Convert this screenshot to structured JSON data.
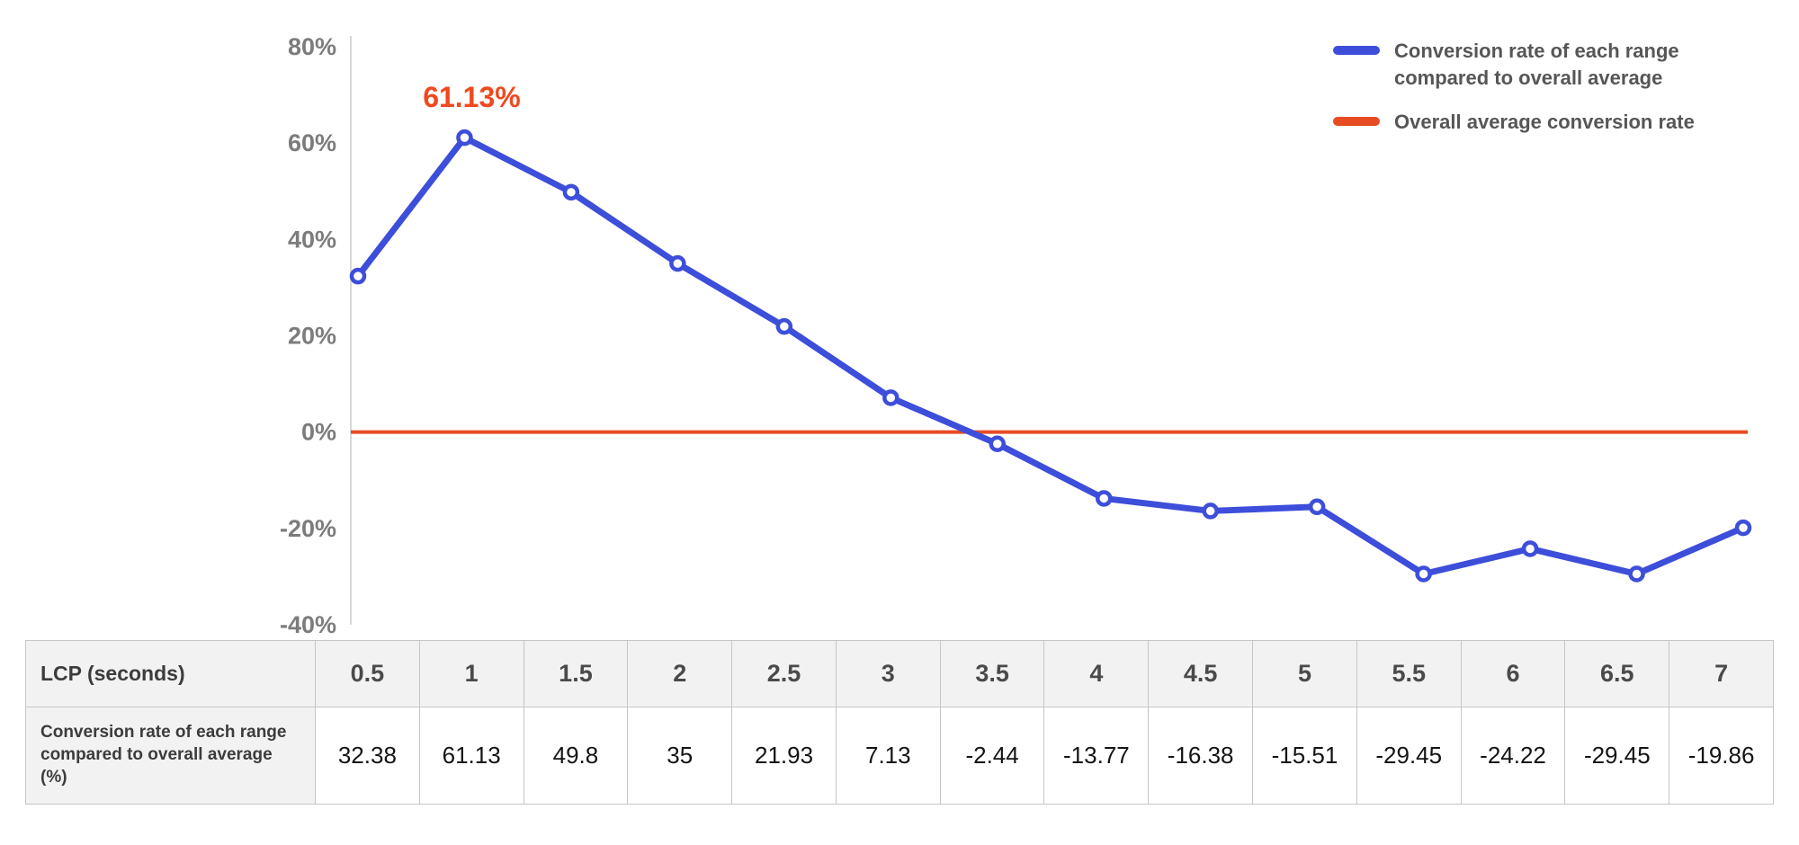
{
  "colors": {
    "series_blue": "#3d4eda",
    "average_red": "#e74b22",
    "annotation_red": "#f1481d",
    "axis_text": "#7c7c7c",
    "legend_text": "#565656",
    "axis_line": "#d8d8d8",
    "table_border": "#c6c6c6",
    "table_header_bg": "#f2f2f2"
  },
  "legend": {
    "position": "top-right",
    "items": [
      {
        "label": "Conversion rate of each range compared to overall average",
        "color": "#3d4eda"
      },
      {
        "label": "Overall average conversion rate",
        "color": "#e74b22"
      }
    ]
  },
  "annotation": {
    "text": "61.13%",
    "point_index": 1,
    "color": "#f1481d"
  },
  "chart_data": {
    "type": "line",
    "x": [
      0.5,
      1,
      1.5,
      2,
      2.5,
      3,
      3.5,
      4,
      4.5,
      5,
      5.5,
      6,
      6.5,
      7
    ],
    "series": [
      {
        "name": "Conversion rate of each range compared to overall average",
        "values": [
          32.38,
          61.13,
          49.8,
          35,
          21.93,
          7.13,
          -2.44,
          -13.77,
          -16.38,
          -15.51,
          -29.45,
          -24.22,
          -29.45,
          -19.86
        ],
        "color": "#3d4eda",
        "marker": "open-circle"
      }
    ],
    "average_line": {
      "name": "Overall average conversion rate",
      "value": 0,
      "color": "#e74b22"
    },
    "title": "",
    "xlabel": "LCP (seconds)",
    "ylabel": "Conversion rate of each range compared to overall average (%)",
    "ylim": [
      -40,
      80
    ],
    "yticks": [
      80,
      60,
      40,
      20,
      0,
      -20,
      -40
    ],
    "ytick_labels": [
      "80%",
      "60%",
      "40%",
      "20%",
      "0%",
      "-20%",
      "-40%"
    ],
    "grid": false,
    "legend_position": "top-right"
  },
  "table": {
    "row1_header": "LCP (seconds)",
    "row2_header": "Conversion rate of each range compared to overall average (%)",
    "x_labels": [
      "0.5",
      "1",
      "1.5",
      "2",
      "2.5",
      "3",
      "3.5",
      "4",
      "4.5",
      "5",
      "5.5",
      "6",
      "6.5",
      "7"
    ],
    "values": [
      "32.38",
      "61.13",
      "49.8",
      "35",
      "21.93",
      "7.13",
      "-2.44",
      "-13.77",
      "-16.38",
      "-15.51",
      "-29.45",
      "-24.22",
      "-29.45",
      "-19.86"
    ]
  }
}
